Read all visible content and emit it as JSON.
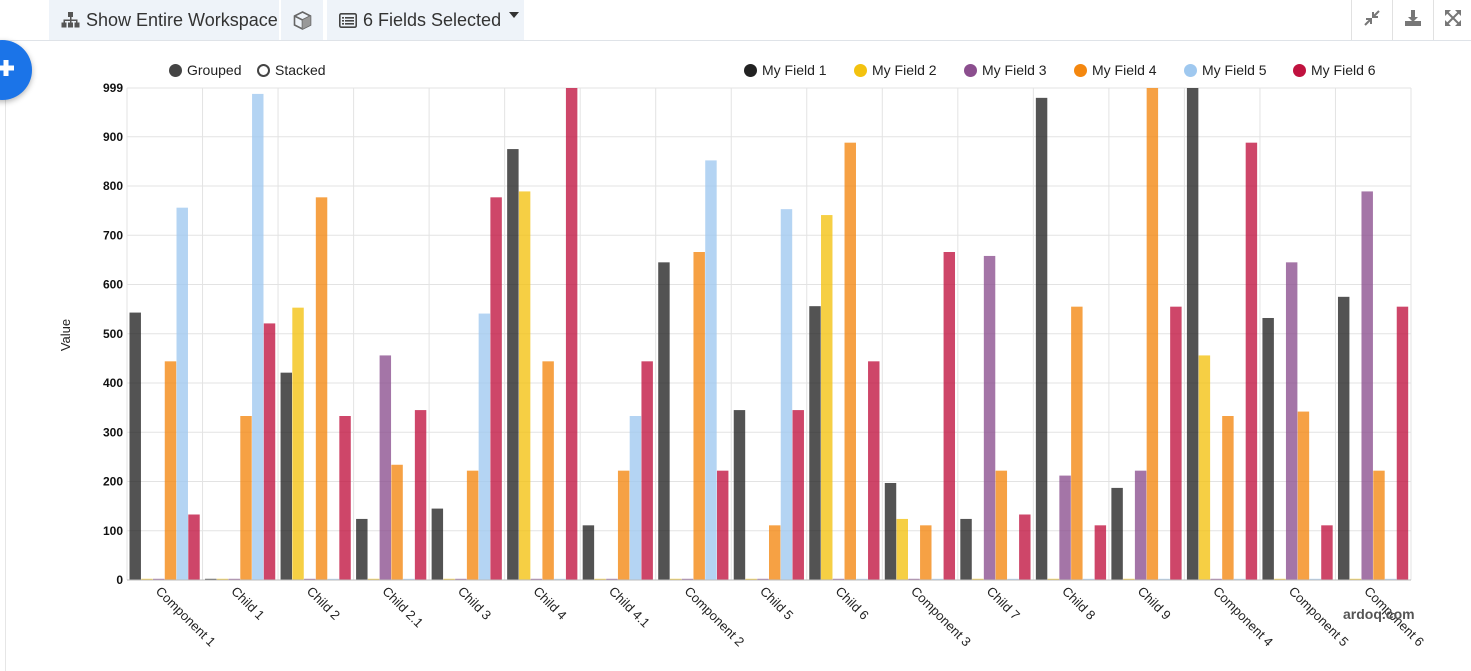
{
  "toolbar": {
    "workspace_label": "Show Entire Workspace",
    "fields_label": "6 Fields Selected"
  },
  "mode_toggle": {
    "grouped_label": "Grouped",
    "stacked_label": "Stacked",
    "selected": "grouped"
  },
  "watermark": "ardoq.com",
  "chart_data": {
    "type": "bar",
    "mode": "grouped",
    "ylabel": "Value",
    "ylim": [
      0,
      999
    ],
    "yticks": [
      0,
      100,
      200,
      300,
      400,
      500,
      600,
      700,
      800,
      900,
      999
    ],
    "grid": true,
    "legend_position": "top-right",
    "categories": [
      "Component 1",
      "Child 1",
      "Child 2",
      "Child 2.1",
      "Child 3",
      "Child 4",
      "Child 4.1",
      "Component 2",
      "Child 5",
      "Child 6",
      "Component 3",
      "Child 7",
      "Child 8",
      "Child 9",
      "Component 4",
      "Component 5",
      "Component 6"
    ],
    "series": [
      {
        "name": "My Field 1",
        "color": "#222222",
        "values": [
          543,
          0,
          421,
          124,
          145,
          875,
          111,
          645,
          345,
          556,
          197,
          124,
          979,
          187,
          999,
          532,
          575
        ]
      },
      {
        "name": "My Field 2",
        "color": "#f3c20f",
        "values": [
          0,
          0,
          553,
          0,
          0,
          789,
          0,
          0,
          0,
          741,
          124,
          0,
          0,
          0,
          456,
          0,
          0
        ]
      },
      {
        "name": "My Field 3",
        "color": "#8b4e8e",
        "values": [
          0,
          0,
          0,
          456,
          0,
          0,
          0,
          0,
          0,
          0,
          0,
          658,
          212,
          222,
          0,
          645,
          789
        ]
      },
      {
        "name": "My Field 4",
        "color": "#f4870f",
        "values": [
          444,
          333,
          777,
          234,
          222,
          444,
          222,
          666,
          111,
          888,
          111,
          222,
          555,
          999,
          333,
          342,
          222
        ]
      },
      {
        "name": "My Field 5",
        "color": "#9fc8ef",
        "values": [
          756,
          987,
          0,
          0,
          541,
          0,
          333,
          852,
          753,
          0,
          0,
          0,
          0,
          0,
          0,
          0,
          0
        ]
      },
      {
        "name": "My Field 6",
        "color": "#c0123f",
        "values": [
          133,
          521,
          333,
          345,
          777,
          999,
          444,
          222,
          345,
          444,
          666,
          133,
          111,
          555,
          888,
          111,
          555
        ]
      }
    ]
  }
}
